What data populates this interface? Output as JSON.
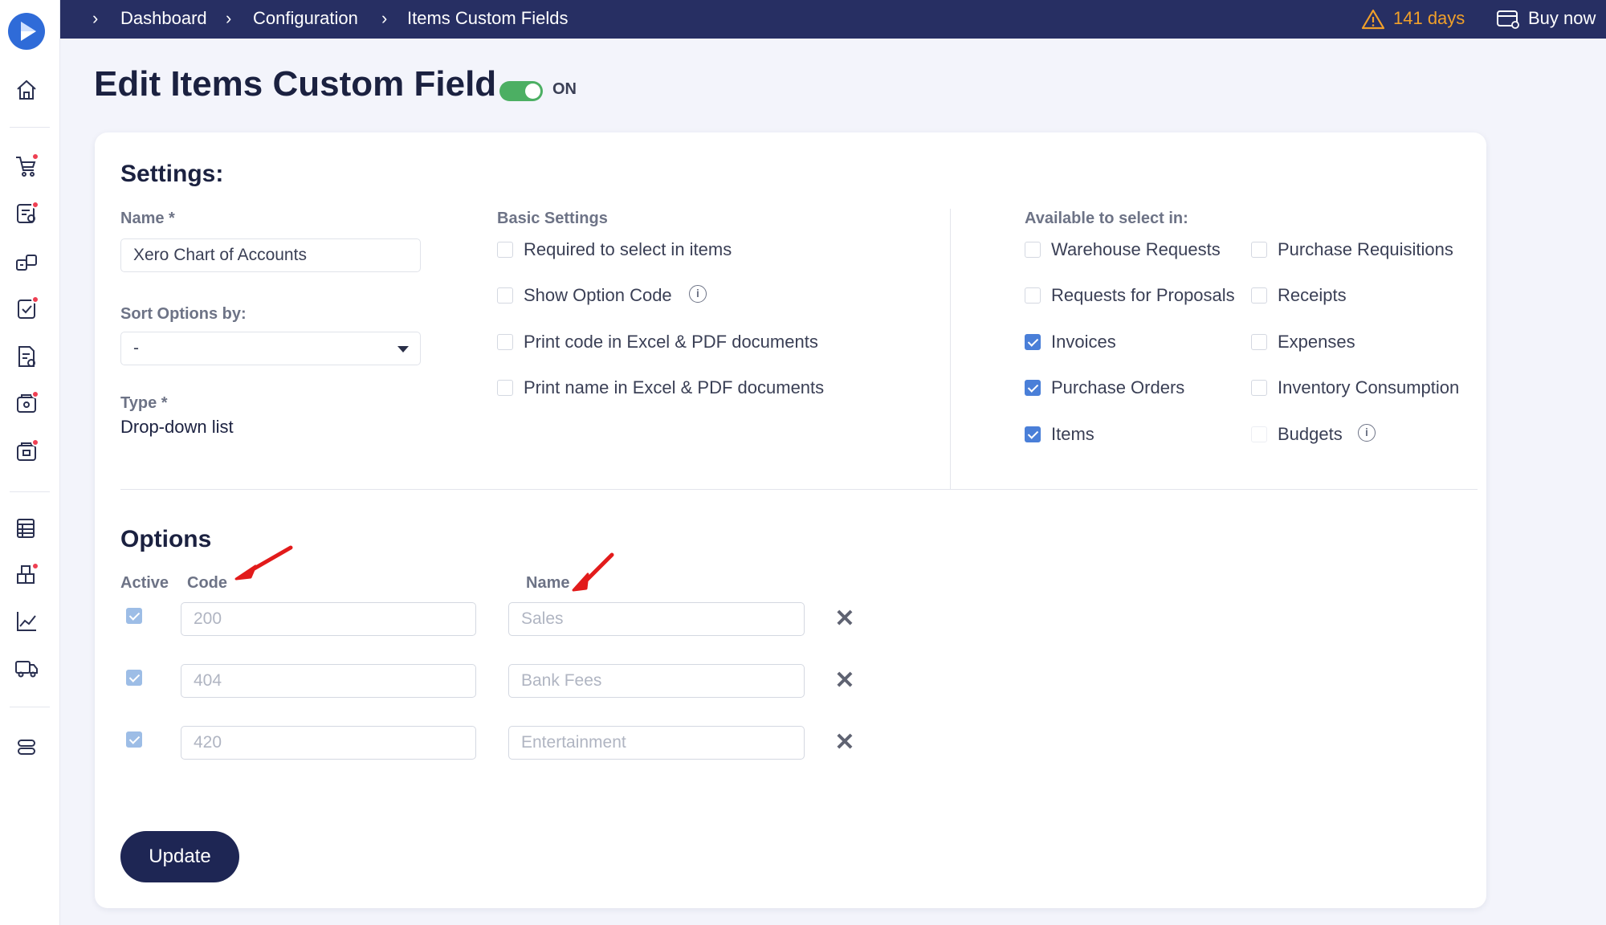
{
  "breadcrumb": {
    "items": [
      "Dashboard",
      "Configuration",
      "Items Custom Fields"
    ]
  },
  "topbar": {
    "trial_days": "141 days",
    "buy_now": "Buy now",
    "warning_color": "#f0a02a"
  },
  "page": {
    "title": "Edit Items Custom Field",
    "toggle_label": "ON",
    "toggle_on": true
  },
  "settings": {
    "heading": "Settings:",
    "name_label": "Name *",
    "name_value": "Xero Chart of Accounts",
    "sort_label": "Sort Options by:",
    "sort_value": "-",
    "type_label": "Type *",
    "type_value": "Drop-down list",
    "basic_heading": "Basic Settings",
    "basic_options": [
      {
        "label": "Required to select in items",
        "checked": false
      },
      {
        "label": "Show Option Code",
        "checked": false
      },
      {
        "label": "Print code in Excel & PDF documents",
        "checked": false
      },
      {
        "label": "Print name in Excel & PDF documents",
        "checked": false
      }
    ],
    "available_heading": "Available to select in:",
    "available_options": [
      {
        "label": "Warehouse Requests",
        "checked": false
      },
      {
        "label": "Purchase Requisitions",
        "checked": false
      },
      {
        "label": "Requests for Proposals",
        "checked": false
      },
      {
        "label": "Receipts",
        "checked": false
      },
      {
        "label": "Invoices",
        "checked": true
      },
      {
        "label": "Expenses",
        "checked": false
      },
      {
        "label": "Purchase Orders",
        "checked": true
      },
      {
        "label": "Inventory Consumption",
        "checked": false
      },
      {
        "label": "Items",
        "checked": true
      },
      {
        "label": "Budgets",
        "checked": false
      }
    ]
  },
  "options": {
    "heading": "Options",
    "col_active": "Active",
    "col_code": "Code",
    "col_name": "Name",
    "rows": [
      {
        "active": true,
        "code": "200",
        "name": "Sales"
      },
      {
        "active": true,
        "code": "404",
        "name": "Bank Fees"
      },
      {
        "active": true,
        "code": "420",
        "name": "Entertainment"
      }
    ]
  },
  "actions": {
    "update": "Update"
  },
  "colors": {
    "topbar": "#272f63",
    "accent": "#4a7fd8",
    "toggle": "#4caf63",
    "button": "#1e2654",
    "badge": "#ee3f52",
    "annotation_arrow": "#e21b1b"
  },
  "sidebar": {
    "icons": [
      "home-icon",
      "cart-icon",
      "request-icon",
      "warehouse-icon",
      "approval-icon",
      "invoice-icon",
      "receipt-icon",
      "expense-icon",
      "table-icon",
      "inventory-icon",
      "analytics-icon",
      "delivery-icon",
      "settings-icon"
    ]
  }
}
